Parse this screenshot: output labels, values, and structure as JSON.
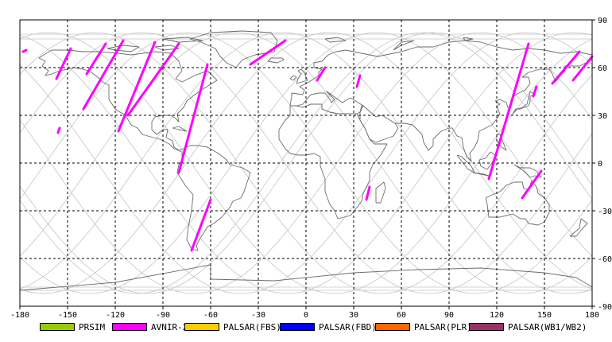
{
  "map": {
    "lon_range": [
      -180,
      180
    ],
    "lat_range": [
      -90,
      90
    ],
    "x_ticks": [
      "-180",
      "-150",
      "-120",
      "-90",
      "-60",
      "-30",
      "0",
      "30",
      "60",
      "90",
      "120",
      "150",
      "180"
    ],
    "y_ticks": [
      "90",
      "60",
      "30",
      "0",
      "-30",
      "-60",
      "-90"
    ],
    "grid_style": "dashed",
    "colors": {
      "frame": "#000000",
      "grid": "#000000",
      "coast": "#6b6b6b",
      "orbit": "#c4c4c4",
      "swath": "#ff00ff"
    }
  },
  "legend": [
    {
      "label": "PRSIM",
      "color": "#99cc00"
    },
    {
      "label": "AVNIR-2",
      "color": "#ff00ff"
    },
    {
      "label": "PALSAR(FBS)",
      "color": "#ffcc00"
    },
    {
      "label": "PALSAR(FBD)",
      "color": "#0000ff"
    },
    {
      "label": "PALSAR(PLR)",
      "color": "#ff6600"
    },
    {
      "label": "PALSAR(WB1/WB2)",
      "color": "#993366"
    }
  ],
  "swaths": [
    {
      "sensor": "AVNIR-2",
      "from": [
        -178,
        70
      ],
      "to": [
        -176,
        71
      ]
    },
    {
      "sensor": "AVNIR-2",
      "from": [
        -148,
        72
      ],
      "to": [
        -157,
        53
      ]
    },
    {
      "sensor": "AVNIR-2",
      "from": [
        -126,
        75
      ],
      "to": [
        -138,
        56
      ]
    },
    {
      "sensor": "AVNIR-2",
      "from": [
        -115,
        77
      ],
      "to": [
        -140,
        34
      ]
    },
    {
      "sensor": "AVNIR-2",
      "from": [
        -95,
        76
      ],
      "to": [
        -118,
        20
      ]
    },
    {
      "sensor": "AVNIR-2",
      "from": [
        -80,
        75
      ],
      "to": [
        -112,
        30
      ]
    },
    {
      "sensor": "AVNIR-2",
      "from": [
        -62,
        62
      ],
      "to": [
        -80,
        -6
      ]
    },
    {
      "sensor": "AVNIR-2",
      "from": [
        -60,
        -23
      ],
      "to": [
        -72,
        -55
      ]
    },
    {
      "sensor": "AVNIR-2",
      "from": [
        -13,
        77
      ],
      "to": [
        -35,
        62
      ]
    },
    {
      "sensor": "AVNIR-2",
      "from": [
        12,
        60
      ],
      "to": [
        7,
        52
      ]
    },
    {
      "sensor": "AVNIR-2",
      "from": [
        34,
        55
      ],
      "to": [
        32,
        48
      ]
    },
    {
      "sensor": "AVNIR-2",
      "from": [
        140,
        75
      ],
      "to": [
        115,
        -10
      ]
    },
    {
      "sensor": "AVNIR-2",
      "from": [
        148,
        -5
      ],
      "to": [
        136,
        -22
      ]
    },
    {
      "sensor": "AVNIR-2",
      "from": [
        172,
        70
      ],
      "to": [
        155,
        50
      ]
    },
    {
      "sensor": "AVNIR-2",
      "from": [
        180,
        67
      ],
      "to": [
        168,
        52
      ]
    },
    {
      "sensor": "AVNIR-2",
      "from": [
        -155,
        22
      ],
      "to": [
        -156,
        19
      ]
    },
    {
      "sensor": "AVNIR-2",
      "from": [
        40,
        -15
      ],
      "to": [
        38,
        -23
      ]
    },
    {
      "sensor": "AVNIR-2",
      "from": [
        145,
        48
      ],
      "to": [
        143,
        42
      ]
    }
  ]
}
